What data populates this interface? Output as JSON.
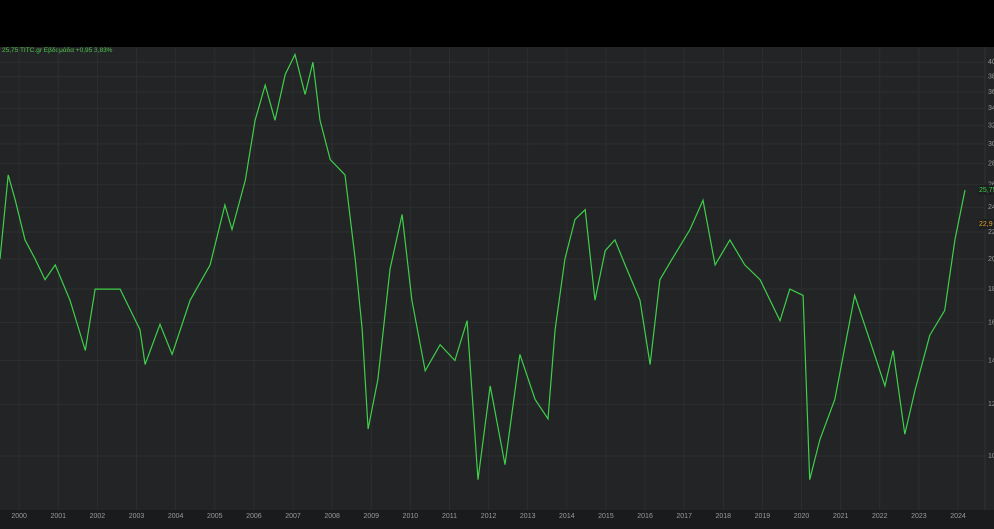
{
  "chart_data": {
    "type": "line",
    "title": "25,75 TITC.gr Εβδομάδα +0,95 3,83%",
    "x": [
      1999.51,
      1999.72,
      1999.9,
      2000.15,
      2000.41,
      2000.66,
      2000.92,
      2001.3,
      2001.69,
      2001.94,
      2002.58,
      2003.09,
      2003.22,
      2003.6,
      2003.91,
      2004.37,
      2004.88,
      2005.26,
      2005.44,
      2005.78,
      2006.03,
      2006.29,
      2006.54,
      2006.8,
      2007.05,
      2007.31,
      2007.51,
      2007.69,
      2007.95,
      2008.33,
      2008.59,
      2008.77,
      2008.92,
      2009.17,
      2009.48,
      2009.79,
      2010.04,
      2010.38,
      2010.76,
      2011.14,
      2011.45,
      2011.73,
      2012.04,
      2012.42,
      2012.8,
      2013.19,
      2013.52,
      2013.7,
      2013.95,
      2014.21,
      2014.47,
      2014.72,
      2014.98,
      2015.23,
      2015.49,
      2015.87,
      2016.13,
      2016.38,
      2016.69,
      2017.15,
      2017.48,
      2017.79,
      2018.17,
      2018.55,
      2018.94,
      2019.45,
      2019.7,
      2020.04,
      2020.21,
      2020.47,
      2020.85,
      2021.36,
      2021.75,
      2022.13,
      2022.34,
      2022.64,
      2022.9,
      2023.28,
      2023.66,
      2023.92,
      2024.18
    ],
    "series": [
      {
        "name": "TITC.gr",
        "color": "#3fcf4a",
        "values": [
          20,
          26.9,
          24.6,
          21.4,
          20,
          18.6,
          19.6,
          17.3,
          14.5,
          18,
          18,
          15.6,
          13.8,
          15.9,
          14.3,
          17.3,
          19.6,
          24.2,
          22.2,
          26.4,
          32.6,
          36.9,
          32.6,
          38.3,
          41.1,
          35.7,
          40,
          32.6,
          28.4,
          26.9,
          20,
          15.6,
          11,
          13.1,
          19.3,
          23.4,
          17.3,
          13.5,
          14.8,
          14,
          16.1,
          9.2,
          12.8,
          9.7,
          14.3,
          12.2,
          11.4,
          15.6,
          20,
          23,
          23.8,
          17.3,
          20.6,
          21.4,
          19.6,
          17.3,
          13.8,
          18.6,
          20,
          22.2,
          24.6,
          19.6,
          21.4,
          19.6,
          18.6,
          16.1,
          18,
          17.6,
          9.2,
          10.6,
          12.2,
          17.6,
          15,
          12.8,
          14.5,
          10.8,
          12.6,
          15.3,
          16.7,
          21.4,
          25.5
        ]
      }
    ],
    "xlim": [
      1999.51,
      2024.69
    ],
    "xticks": [
      2000,
      2001,
      2002,
      2003,
      2004,
      2005,
      2006,
      2007,
      2008,
      2009,
      2010,
      2011,
      2012,
      2013,
      2014,
      2015,
      2016,
      2017,
      2018,
      2019,
      2020,
      2021,
      2022,
      2023,
      2024
    ],
    "ylim": [
      8.27,
      42.2
    ],
    "yticks": [
      10,
      12,
      14,
      16,
      18,
      20,
      22,
      24,
      26,
      28,
      30,
      32,
      34,
      36,
      38,
      40
    ],
    "log_y": true,
    "grid": true,
    "price_labels": [
      "25,75",
      "22,9"
    ]
  }
}
